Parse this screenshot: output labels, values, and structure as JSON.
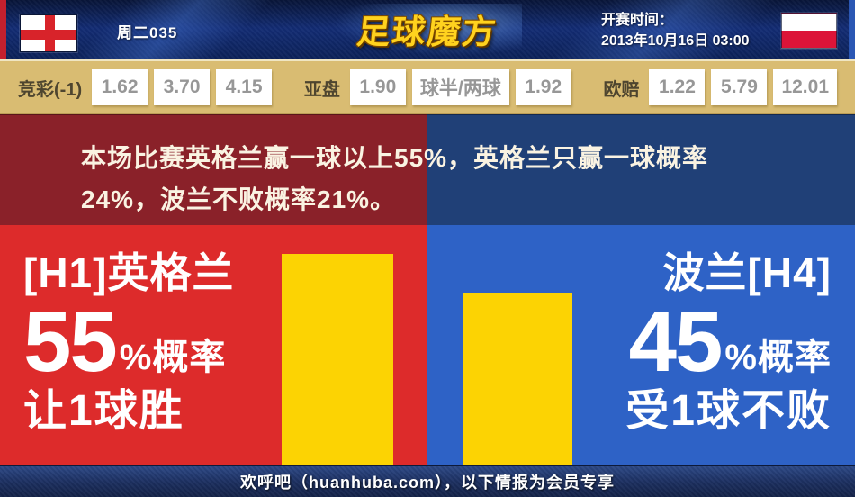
{
  "header": {
    "match_code": "周二035",
    "logo_text": "足球魔方",
    "kickoff_label": "开赛时间：",
    "kickoff_time": "2013年10月16日 03:00",
    "home_flag": "england-flag",
    "away_flag": "poland-flag"
  },
  "odds": {
    "jingcai": {
      "label": "竞彩(-1)",
      "values": [
        "1.62",
        "3.70",
        "4.15"
      ]
    },
    "yapan": {
      "label": "亚盘",
      "values": [
        "1.90",
        "球半/两球",
        "1.92"
      ]
    },
    "oupei": {
      "label": "欧赔",
      "values": [
        "1.22",
        "5.79",
        "12.01"
      ]
    }
  },
  "summary": {
    "line1": "本场比赛英格兰赢一球以上55%，英格兰只赢一球概率",
    "line2": "24%，波兰不败概率21%。"
  },
  "panels": {
    "home": {
      "title": "[H1]英格兰",
      "probability": 55,
      "percent_suffix": "%概率",
      "outcome": "让1球胜"
    },
    "away": {
      "title": "波兰[H4]",
      "probability": 45,
      "percent_suffix": "%概率",
      "outcome": "受1球不败"
    }
  },
  "chart_data": {
    "type": "bar",
    "categories": [
      "[H1]英格兰 让1球胜",
      "波兰[H4] 受1球不败"
    ],
    "values": [
      55,
      45
    ],
    "unit": "%",
    "bar_color": "#fcd303",
    "ylim": [
      0,
      62.5
    ],
    "legend": "none",
    "grid": false
  },
  "footer": {
    "text": "欢呼吧（huanhuba.com），以下情报为会员专享"
  },
  "colors": {
    "home_panel": "#dd2b2b",
    "away_panel": "#2e62c6",
    "home_summary": "#8a2129",
    "away_summary": "#204077",
    "bar": "#fcd303",
    "odds_background": "#d9bc72",
    "header_navy": "#0c2158"
  }
}
